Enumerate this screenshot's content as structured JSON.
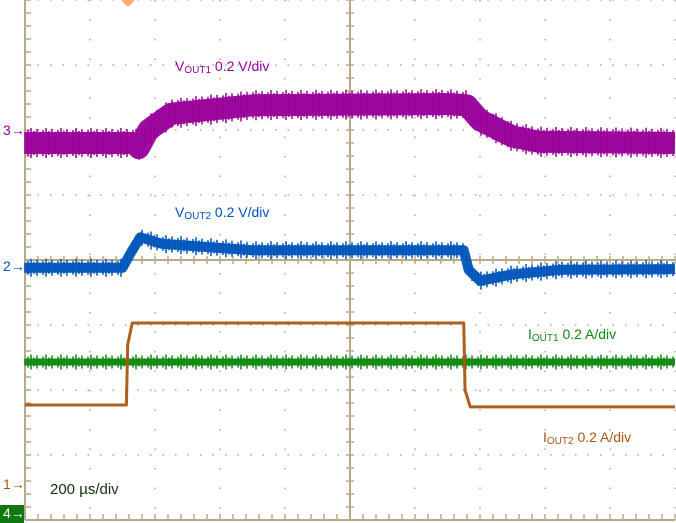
{
  "chart_data": {
    "type": "line",
    "title": "",
    "xlabel": "",
    "ylabel": "",
    "time_scale": "200 µs/div",
    "xlim": [
      0,
      2000
    ],
    "ylim_div": [
      0,
      8
    ],
    "grid": true,
    "series": [
      {
        "name": "VOUT1 0.2 V/div",
        "sub": "OUT1",
        "pre": "V",
        "post": " 0.2 V/div",
        "channel": "3",
        "color": "#990099",
        "band": 22,
        "x": [
          0,
          340,
          350,
          380,
          450,
          700,
          1300,
          1360,
          1400,
          1500,
          1580,
          2000
        ],
        "y": [
          5.8,
          5.8,
          5.72,
          6.0,
          6.25,
          6.38,
          6.4,
          6.38,
          6.15,
          5.9,
          5.82,
          5.8
        ]
      },
      {
        "name": "VOUT2 0.2 V/div",
        "sub": "OUT2",
        "pre": "V",
        "post": " 0.2 V/div",
        "channel": "2",
        "color": "#0055bb",
        "band": 10,
        "x": [
          0,
          300,
          330,
          355,
          420,
          700,
          1350,
          1365,
          1400,
          1500,
          1650,
          2000
        ],
        "y": [
          3.88,
          3.88,
          4.15,
          4.35,
          4.25,
          4.15,
          4.15,
          3.85,
          3.68,
          3.78,
          3.85,
          3.86
        ]
      },
      {
        "name": "IOUT1 0.2 A/div",
        "sub": "OUT1",
        "pre": "I",
        "post": " 0.2 A/div",
        "channel": "4",
        "color": "#118811",
        "band": 7,
        "x": [
          0,
          2000
        ],
        "y": [
          2.43,
          2.43
        ]
      },
      {
        "name": "IOUT2 0.2 A/div",
        "sub": "OUT2",
        "pre": "I",
        "post": " 0.2 A/div",
        "channel": "1",
        "color": "#aa5511",
        "band": 3,
        "x": [
          0,
          312,
          316,
          330,
          1350,
          1354,
          1370,
          2000
        ],
        "y": [
          1.77,
          1.77,
          2.7,
          3.03,
          3.03,
          2.0,
          1.74,
          1.74
        ]
      }
    ]
  },
  "markers": {
    "ch3": "3",
    "ch2": "2",
    "ch1": "1",
    "ch4": "4"
  },
  "colors": {
    "grid": "#b8aa88",
    "trigger": "#ffaa77"
  }
}
